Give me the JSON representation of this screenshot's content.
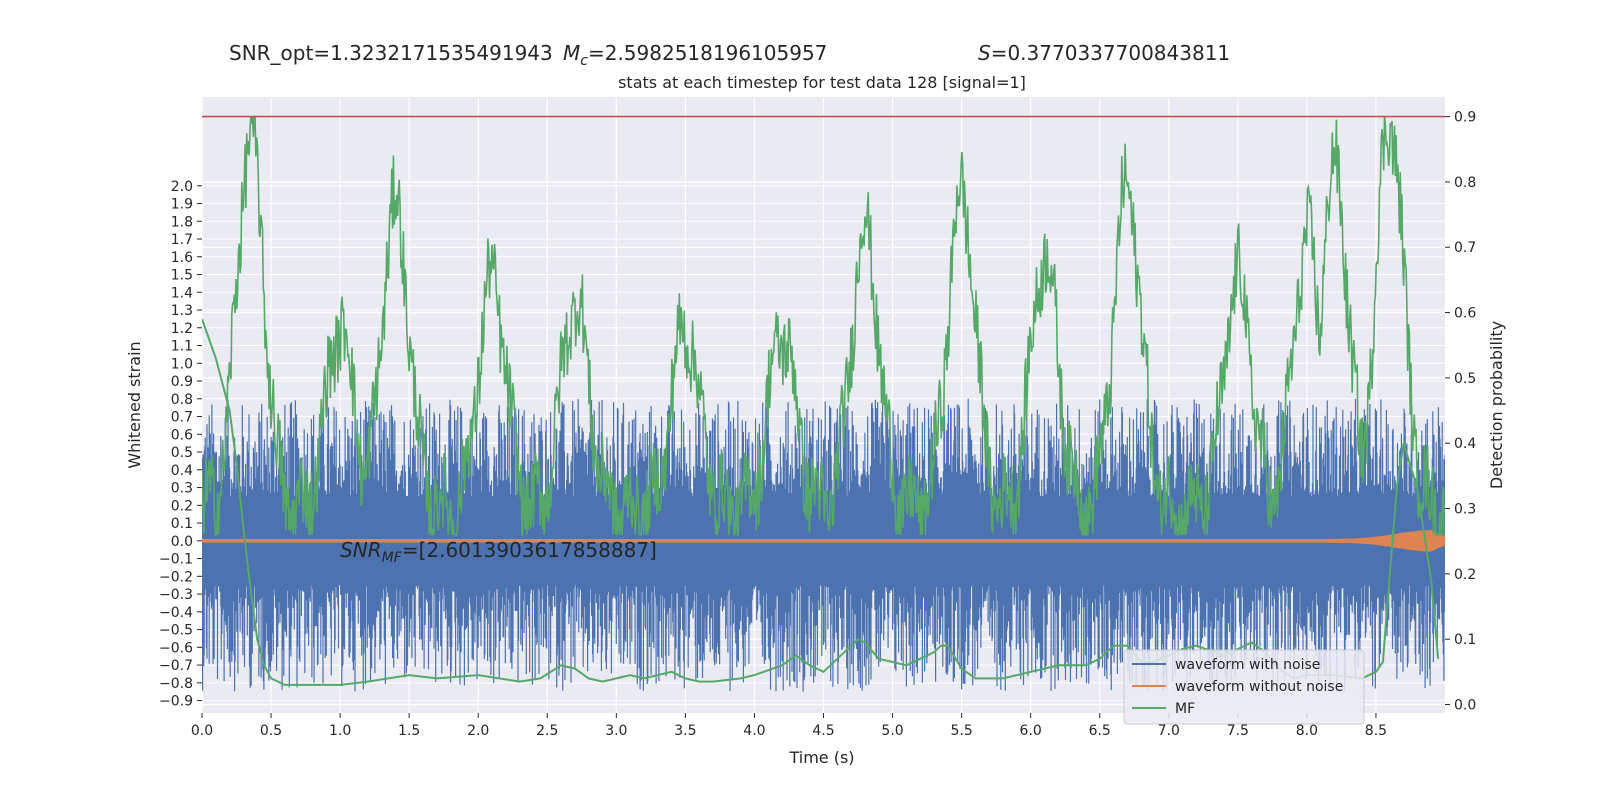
{
  "header": {
    "snr_opt": "SNR_opt=1.3232171535491943",
    "mc_symbol": "M",
    "mc_sub": "c",
    "mc_value": "=2.5982518196105957",
    "s_symbol": "S",
    "s_value": "=0.3770337700843811"
  },
  "chart_data": {
    "type": "line",
    "title": "stats at each timestep for test data 128 [signal=1]",
    "xlabel": "Time (s)",
    "ylabel_left": "Whitened strain",
    "ylabel_right": "Detection probability",
    "xlim": [
      0.0,
      9.0
    ],
    "ylim_left": [
      -0.97,
      2.5
    ],
    "ylim_right": [
      -0.013,
      0.93
    ],
    "x_ticks": [
      "0.0",
      "0.5",
      "1.0",
      "1.5",
      "2.0",
      "2.5",
      "3.0",
      "3.5",
      "4.0",
      "4.5",
      "5.0",
      "5.5",
      "6.0",
      "6.5",
      "7.0",
      "7.5",
      "8.0",
      "8.5"
    ],
    "y_left_ticks": [
      "2.0",
      "1.9",
      "1.8",
      "1.7",
      "1.6",
      "1.5",
      "1.4",
      "1.3",
      "1.2",
      "1.1",
      "1.0",
      "0.9",
      "0.8",
      "0.7",
      "0.6",
      "0.5",
      "0.4",
      "0.3",
      "0.2",
      "0.1",
      "0.0",
      "−0.1",
      "−0.2",
      "−0.3",
      "−0.4",
      "−0.5",
      "−0.6",
      "−0.7",
      "−0.8",
      "−0.9"
    ],
    "y_right_ticks": [
      "0.9",
      "0.8",
      "0.7",
      "0.6",
      "0.5",
      "0.4",
      "0.3",
      "0.2",
      "0.1",
      "0.0"
    ],
    "threshold": 0.9,
    "threshold_color": "#c44e52",
    "series": [
      {
        "name": "waveform with noise",
        "color": "#4c72b0",
        "axis": "left",
        "envelope": {
          "core_min": -0.25,
          "core_max": 0.25,
          "peak_max": 0.8,
          "peak_min": -0.85
        }
      },
      {
        "name": "waveform without noise",
        "color": "#dd8452",
        "axis": "left",
        "burst_x": 8.9,
        "burst_amp": 0.05
      },
      {
        "name": "MF",
        "color": "#55a868",
        "axis": "right",
        "x": [
          0.0,
          0.1,
          0.2,
          0.25,
          0.3,
          0.35,
          0.4,
          0.45,
          0.5,
          0.6,
          0.8,
          1.0,
          1.2,
          1.5,
          1.7,
          2.0,
          2.3,
          2.45,
          2.6,
          2.7,
          2.8,
          2.9,
          3.0,
          3.1,
          3.2,
          3.4,
          3.5,
          3.6,
          3.7,
          3.9,
          4.0,
          4.2,
          4.3,
          4.4,
          4.5,
          4.6,
          4.7,
          4.75,
          4.8,
          4.9,
          5.0,
          5.1,
          5.2,
          5.3,
          5.35,
          5.4,
          5.5,
          5.6,
          5.8,
          6.0,
          6.1,
          6.2,
          6.4,
          6.5,
          6.6,
          6.7,
          6.8,
          6.9,
          7.0,
          7.1,
          7.2,
          7.4,
          7.5,
          7.6,
          7.7,
          7.8,
          7.9,
          8.0,
          8.2,
          8.4,
          8.5,
          8.55,
          8.6,
          8.65,
          8.7,
          8.8,
          8.9,
          8.95
        ],
        "y": [
          0.59,
          0.53,
          0.45,
          0.37,
          0.27,
          0.18,
          0.1,
          0.06,
          0.04,
          0.03,
          0.03,
          0.03,
          0.035,
          0.045,
          0.04,
          0.045,
          0.035,
          0.04,
          0.06,
          0.055,
          0.04,
          0.035,
          0.04,
          0.045,
          0.04,
          0.05,
          0.04,
          0.035,
          0.035,
          0.04,
          0.045,
          0.06,
          0.075,
          0.06,
          0.05,
          0.07,
          0.09,
          0.1,
          0.095,
          0.07,
          0.065,
          0.06,
          0.07,
          0.08,
          0.09,
          0.09,
          0.055,
          0.04,
          0.04,
          0.05,
          0.055,
          0.06,
          0.06,
          0.07,
          0.09,
          0.09,
          0.065,
          0.065,
          0.075,
          0.085,
          0.09,
          0.075,
          0.085,
          0.095,
          0.08,
          0.055,
          0.04,
          0.045,
          0.045,
          0.04,
          0.05,
          0.065,
          0.2,
          0.33,
          0.4,
          0.33,
          0.19,
          0.07
        ]
      }
    ],
    "prob_trace": {
      "color": "#55a868",
      "peaks_x": [
        0.35,
        1.0,
        1.4,
        2.1,
        2.7,
        3.5,
        4.2,
        4.8,
        5.5,
        6.1,
        6.7,
        7.5,
        8.0,
        8.2,
        8.6
      ],
      "peaks_y": [
        0.87,
        0.58,
        0.76,
        0.65,
        0.62,
        0.58,
        0.57,
        0.73,
        0.78,
        0.69,
        0.79,
        0.65,
        0.71,
        0.82,
        0.9
      ]
    },
    "annotation": {
      "prefix": "SNR",
      "sub": "MF",
      "value": "=[2.6013903617858887]",
      "x": 1.0,
      "y": -0.09
    },
    "legend": {
      "position": "lower-right",
      "items": [
        "waveform with noise",
        "waveform without noise",
        "MF"
      ]
    },
    "grid": true
  }
}
